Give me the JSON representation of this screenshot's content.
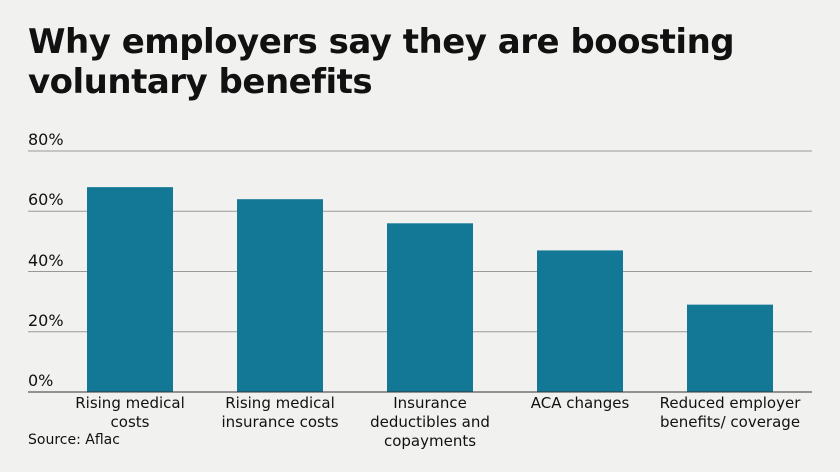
{
  "chart_data": {
    "type": "bar",
    "title": "Why employers say they are boosting voluntary benefits",
    "categories": [
      "Rising medical costs",
      "Rising medical insurance costs",
      "Insurance deductibles and copayments",
      "ACA changes",
      "Reduced employer benefits/ coverage"
    ],
    "values": [
      68,
      64,
      56,
      47,
      29
    ],
    "color": "#127896",
    "ylim": [
      0,
      80
    ],
    "yticks": [
      {
        "value": 0,
        "label": "0%"
      },
      {
        "value": 20,
        "label": "20%"
      },
      {
        "value": 40,
        "label": "40%"
      },
      {
        "value": 60,
        "label": "60%"
      },
      {
        "value": 80,
        "label": "80%"
      }
    ],
    "grid": true,
    "source": "Source: Aflac"
  }
}
